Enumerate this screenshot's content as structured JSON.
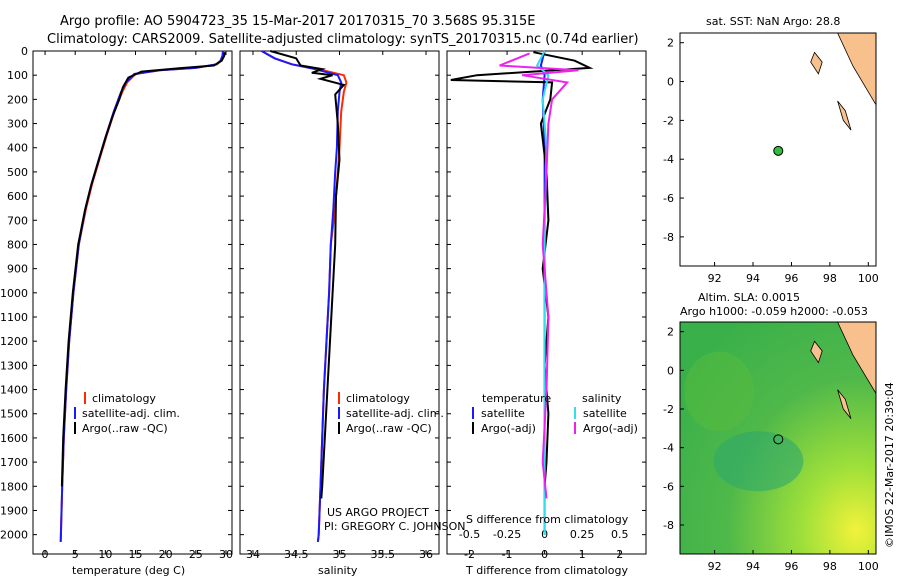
{
  "header": {
    "line1": "Argo profile: AO 5904723_35 15-Mar-2017 20170315_70 3.568S 95.315E",
    "line2": "Climatology: CARS2009. Satellite-adjusted climatology: synTS_20170315.nc (0.74d earlier)"
  },
  "colors": {
    "clim": "#ff2a00",
    "sat": "#1a1aff",
    "argo": "#000000",
    "sal_sat": "#33ddee",
    "sal_argo": "#ee22ee",
    "land": "#f8c08c",
    "sla_mid": "#4fb84a"
  },
  "depth_axis": {
    "ticks": [
      "0",
      "100",
      "200",
      "300",
      "400",
      "500",
      "600",
      "700",
      "800",
      "900",
      "1000",
      "1100",
      "1200",
      "1300",
      "1400",
      "1500",
      "1600",
      "1700",
      "1800",
      "1900",
      "2000"
    ]
  },
  "chart_data": [
    {
      "type": "line",
      "id": "temperature",
      "xlabel": "temperature (deg C)",
      "xlim": [
        -2,
        31
      ],
      "ylim": [
        0,
        2080
      ],
      "xticks": [
        "0",
        "5",
        "10",
        "15",
        "20",
        "25",
        "30"
      ],
      "legend": [
        "climatology",
        "satellite-adj. clim.",
        "Argo(..raw -QC)"
      ],
      "series": [
        {
          "name": "climatology",
          "x": [
            29.6,
            29.5,
            29.2,
            28.5,
            25,
            19,
            15,
            13.6,
            12.8,
            11.5,
            10.2,
            9,
            7.8,
            6.8,
            5.6,
            4.7,
            4.0,
            3.5,
            3.1,
            2.85,
            2.6
          ],
          "y": [
            0,
            20,
            40,
            55,
            70,
            80,
            95,
            130,
            170,
            250,
            350,
            450,
            550,
            650,
            800,
            1000,
            1200,
            1400,
            1600,
            1800,
            2030
          ]
        },
        {
          "name": "satellite-adj. clim.",
          "x": [
            29.5,
            29.4,
            29.1,
            28.4,
            25,
            19,
            14.8,
            13.4,
            12.6,
            11.4,
            10.1,
            8.9,
            7.7,
            6.7,
            5.6,
            4.7,
            4.0,
            3.5,
            3.1,
            2.85,
            2.6
          ],
          "y": [
            0,
            20,
            40,
            55,
            70,
            80,
            95,
            130,
            170,
            250,
            350,
            450,
            550,
            650,
            800,
            1000,
            1200,
            1400,
            1600,
            1800,
            2030
          ]
        },
        {
          "name": "Argo",
          "x": [
            29.8,
            29.7,
            29.3,
            28,
            22,
            16,
            13.8,
            12.9,
            12.3,
            11.2,
            10,
            8.8,
            7.6,
            6.6,
            5.5,
            4.6,
            3.9,
            3.4,
            3.0,
            2.8
          ],
          "y": [
            5,
            20,
            40,
            60,
            72,
            85,
            110,
            150,
            200,
            270,
            360,
            460,
            560,
            660,
            800,
            1000,
            1200,
            1400,
            1600,
            1800
          ]
        }
      ]
    },
    {
      "type": "line",
      "id": "salinity",
      "xlabel": "salinity",
      "xlim": [
        33.85,
        36.15
      ],
      "ylim": [
        0,
        2080
      ],
      "xticks": [
        "34",
        "34.5",
        "35",
        "35.5",
        "36"
      ],
      "legend": [
        "climatology",
        "satellite-adj. clim.",
        "Argo(..raw -QC)"
      ],
      "series": [
        {
          "name": "climatology",
          "x": [
            34.1,
            34.25,
            34.45,
            34.75,
            35.05,
            35.08,
            35.05,
            35.02,
            35.0,
            34.98,
            34.95,
            34.9,
            34.88,
            34.85,
            34.82,
            34.8,
            34.78,
            34.77,
            34.76,
            34.75
          ],
          "y": [
            0,
            30,
            55,
            75,
            100,
            130,
            170,
            250,
            400,
            500,
            650,
            800,
            1000,
            1200,
            1400,
            1600,
            1800,
            1900,
            2000,
            2030
          ]
        },
        {
          "name": "satellite-adj. clim.",
          "x": [
            34.1,
            34.25,
            34.45,
            34.72,
            34.98,
            35.02,
            35.0,
            34.98,
            34.97,
            34.95,
            34.93,
            34.9,
            34.88,
            34.85,
            34.82,
            34.8,
            34.78,
            34.77,
            34.76,
            34.75
          ],
          "y": [
            0,
            30,
            55,
            75,
            100,
            130,
            170,
            250,
            400,
            500,
            650,
            800,
            1000,
            1200,
            1400,
            1600,
            1800,
            1900,
            2000,
            2030
          ]
        },
        {
          "name": "Argo",
          "x": [
            34.2,
            34.5,
            34.55,
            34.8,
            34.68,
            34.92,
            34.78,
            35.05,
            34.95,
            34.98,
            35.0,
            34.96,
            34.95,
            34.92,
            34.89,
            34.86,
            34.83,
            34.8,
            34.79
          ],
          "y": [
            0,
            30,
            60,
            75,
            90,
            100,
            115,
            140,
            180,
            300,
            450,
            600,
            800,
            1000,
            1200,
            1400,
            1600,
            1800,
            1850
          ]
        }
      ]
    },
    {
      "type": "line",
      "id": "difference",
      "xlabel": "T difference from climatology",
      "xlabel_top": "S difference from climatology",
      "xlim": [
        -2.6,
        2.7
      ],
      "ylim": [
        0,
        2080
      ],
      "xticks_bottom": [
        "-2",
        "-1",
        "0",
        "1",
        "2"
      ],
      "xticks_top": [
        "-0.5",
        "-0.25",
        "0",
        "0.25",
        "0.5"
      ],
      "legend_headers": [
        "temperature",
        "salinity"
      ],
      "legend_t": [
        "satellite",
        "Argo(-adj)"
      ],
      "legend_s": [
        "satellite",
        "Argo(-adj)"
      ],
      "series": [
        {
          "name": "T satellite",
          "x": [
            0,
            -0.1,
            0,
            -0.05,
            0,
            0,
            0,
            0,
            0
          ],
          "y": [
            0,
            60,
            100,
            200,
            400,
            800,
            1200,
            1600,
            2000
          ]
        },
        {
          "name": "T Argo",
          "x": [
            -0.3,
            0.8,
            1.2,
            -1.8,
            -2.5,
            0.2,
            0.15,
            -0.1,
            0.05,
            0.1,
            -0.05,
            0.1,
            0.0,
            0.1,
            0.05,
            0.0
          ],
          "y": [
            5,
            40,
            70,
            100,
            120,
            130,
            200,
            300,
            500,
            700,
            900,
            1100,
            1300,
            1500,
            1700,
            1800
          ]
        },
        {
          "name": "S satellite",
          "x": [
            0,
            -0.2,
            0.1,
            -0.05,
            0.05,
            0,
            0,
            0,
            0
          ],
          "y": [
            0,
            60,
            100,
            200,
            400,
            800,
            1200,
            1600,
            2000
          ]
        },
        {
          "name": "S Argo",
          "x": [
            -0.4,
            -1.2,
            0.9,
            -0.6,
            0.6,
            0.2,
            0.1,
            0.05,
            -0.05,
            0.1,
            0.05,
            -0.05,
            0.05
          ],
          "y": [
            10,
            60,
            80,
            100,
            130,
            200,
            300,
            500,
            800,
            1100,
            1400,
            1700,
            1850
          ]
        }
      ]
    },
    {
      "type": "scatter",
      "id": "sst_map",
      "title": "sat. SST: NaN Argo: 28.8",
      "xlim": [
        90.2,
        100.4
      ],
      "ylim": [
        -9.5,
        2.5
      ],
      "xticks": [
        "92",
        "94",
        "96",
        "98",
        "100"
      ],
      "yticks": [
        "2",
        "0",
        "-2",
        "-4",
        "-6",
        "-8"
      ],
      "point": {
        "lon": 95.315,
        "lat": -3.568
      }
    },
    {
      "type": "heatmap",
      "id": "sla_map",
      "title1": "Altim. SLA: 0.0015",
      "title2": "Argo h1000: -0.059 h2000: -0.053",
      "xlim": [
        90.2,
        100.4
      ],
      "ylim": [
        -9.5,
        2.5
      ],
      "xticks": [
        "92",
        "94",
        "96",
        "98",
        "100"
      ],
      "yticks": [
        "2",
        "0",
        "-2",
        "-4",
        "-6",
        "-8"
      ],
      "point": {
        "lon": 95.315,
        "lat": -3.568
      }
    }
  ],
  "footer": {
    "project": "US ARGO PROJECT",
    "pi": "PI: GREGORY C. JOHNSON",
    "imos": "©IMOS 22-Mar-2017 20:39:04"
  }
}
